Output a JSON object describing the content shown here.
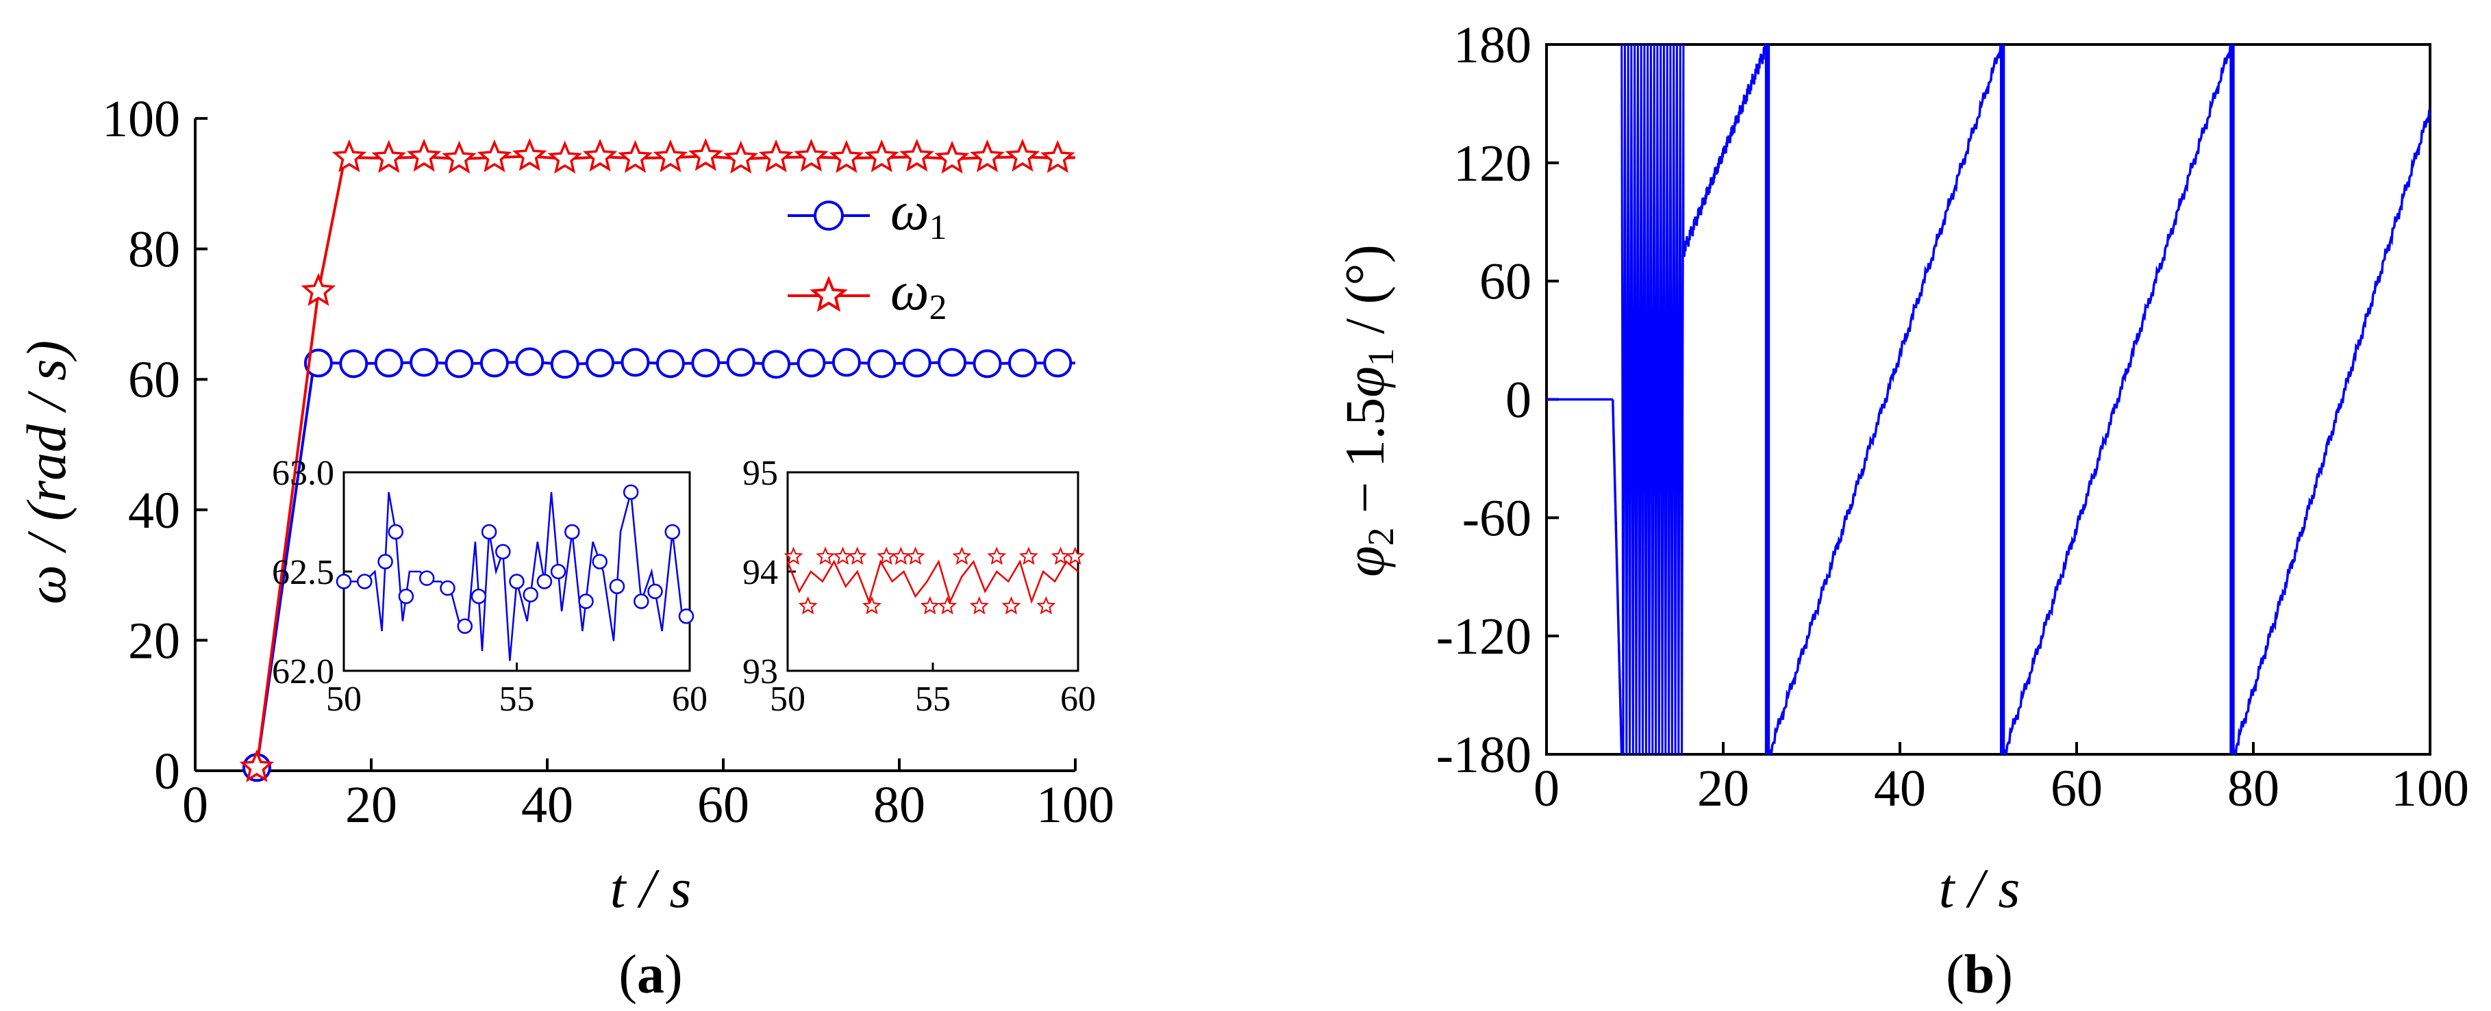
{
  "panel_a": {
    "label_open": "(",
    "label_letter": "a",
    "label_close": ")"
  },
  "panel_b": {
    "label_open": "(",
    "label_letter": "b",
    "label_close": ")"
  },
  "colors": {
    "omega1": "#0000ee",
    "omega2": "#ee0000",
    "phase": "#0000ff",
    "axis": "#000000"
  },
  "chart_data": [
    {
      "type": "line",
      "xlabel": "t / s",
      "ylabel": "ω / (rad / s)",
      "xlim": [
        0,
        100
      ],
      "ylim": [
        0,
        100
      ],
      "xticks": [
        0,
        20,
        40,
        60,
        80,
        100
      ],
      "yticks": [
        0,
        20,
        40,
        60,
        80,
        100
      ],
      "legend_position": "top-right",
      "series": [
        {
          "name": "ω1",
          "marker": "circle",
          "x": [
            7,
            13.5,
            16,
            18,
            22,
            26,
            30,
            34,
            38,
            42,
            46,
            50,
            54,
            58,
            62,
            66,
            70,
            74,
            78,
            82,
            86,
            90,
            94,
            98,
            100
          ],
          "y": [
            0.5,
            62.5,
            62.5,
            62.4,
            62.5,
            62.6,
            62.4,
            62.5,
            62.7,
            62.3,
            62.5,
            62.6,
            62.4,
            62.5,
            62.6,
            62.3,
            62.5,
            62.6,
            62.4,
            62.5,
            62.6,
            62.4,
            62.5,
            62.5,
            62.5
          ],
          "marker_x": [
            7,
            14,
            18,
            22,
            26,
            30,
            34,
            38,
            42,
            46,
            50,
            54,
            58,
            62,
            66,
            70,
            74,
            78,
            82,
            86,
            90,
            94,
            98
          ]
        },
        {
          "name": "ω2",
          "marker": "star",
          "x": [
            7,
            14,
            17,
            18,
            22,
            26,
            30,
            34,
            38,
            42,
            46,
            50,
            54,
            58,
            62,
            66,
            70,
            74,
            78,
            82,
            86,
            90,
            94,
            98,
            100
          ],
          "y": [
            0.5,
            73.5,
            94,
            94,
            93.9,
            94.1,
            93.8,
            94,
            94.2,
            93.8,
            94.1,
            93.9,
            94,
            94.2,
            93.8,
            94,
            94.1,
            93.9,
            94,
            94.1,
            93.8,
            94,
            94.1,
            93.9,
            94
          ],
          "marker_x": [
            7,
            14,
            17.5,
            22,
            26,
            30,
            34,
            38,
            42,
            46,
            50,
            54,
            58,
            62,
            66,
            70,
            74,
            78,
            82,
            86,
            90,
            94,
            98
          ]
        }
      ],
      "insets": [
        {
          "series": "ω1",
          "xlim": [
            50,
            60
          ],
          "ylim": [
            62.0,
            63.0
          ],
          "xticks": [
            50,
            55,
            60
          ],
          "yticks": [
            62.0,
            62.5,
            63.0
          ],
          "ytick_labels": [
            "62.0",
            "62.5",
            "63.0"
          ],
          "x": [
            50,
            50.3,
            50.6,
            50.9,
            51.1,
            51.3,
            51.5,
            51.7,
            51.9,
            52.2,
            52.5,
            52.8,
            53.1,
            53.4,
            53.6,
            53.8,
            54.0,
            54.2,
            54.4,
            54.6,
            54.8,
            55.0,
            55.3,
            55.6,
            55.8,
            56.0,
            56.3,
            56.6,
            56.9,
            57.2,
            57.5,
            57.8,
            58.0,
            58.3,
            58.6,
            58.9,
            59.2,
            59.5,
            59.8,
            60
          ],
          "y": [
            62.45,
            62.45,
            62.45,
            62.5,
            62.2,
            62.9,
            62.7,
            62.25,
            62.5,
            62.5,
            62.45,
            62.45,
            62.4,
            62.2,
            62.25,
            62.65,
            62.1,
            62.7,
            62.5,
            62.6,
            62.05,
            62.45,
            62.25,
            62.65,
            62.45,
            62.9,
            62.3,
            62.7,
            62.2,
            62.65,
            62.5,
            62.15,
            62.7,
            62.9,
            62.35,
            62.5,
            62.2,
            62.7,
            62.25,
            62.3
          ],
          "marker_x": [
            50,
            50.6,
            51.2,
            51.5,
            51.8,
            52.4,
            53.0,
            53.5,
            53.9,
            54.2,
            54.6,
            55.0,
            55.4,
            55.8,
            56.2,
            56.6,
            57.0,
            57.4,
            57.9,
            58.3,
            58.6,
            59.0,
            59.5,
            59.9
          ]
        },
        {
          "series": "ω2",
          "xlim": [
            50,
            60
          ],
          "ylim": [
            93,
            95
          ],
          "xticks": [
            50,
            55,
            60
          ],
          "yticks": [
            93,
            94,
            95
          ],
          "ytick_labels": [
            "93",
            "94",
            "95"
          ],
          "x": [
            50,
            50.4,
            50.8,
            51.2,
            51.6,
            52.0,
            52.4,
            52.8,
            53.2,
            53.6,
            54.0,
            54.4,
            54.8,
            55.2,
            55.6,
            56.0,
            56.4,
            56.8,
            57.2,
            57.6,
            58.0,
            58.4,
            58.8,
            59.2,
            59.6,
            60
          ],
          "y": [
            94.1,
            93.8,
            94.0,
            93.9,
            94.1,
            93.85,
            94.0,
            93.7,
            94.1,
            93.9,
            94.0,
            93.75,
            93.9,
            94.1,
            93.7,
            93.95,
            94.1,
            93.8,
            94.0,
            93.9,
            94.1,
            93.7,
            94.0,
            93.9,
            94.1,
            94.0
          ],
          "marker_x": [
            50.2,
            50.7,
            51.3,
            51.9,
            52.4,
            52.9,
            53.4,
            53.9,
            54.4,
            54.9,
            55.5,
            56.0,
            56.6,
            57.2,
            57.7,
            58.3,
            58.9,
            59.4,
            59.9
          ],
          "marker_y": [
            94.15,
            93.65,
            94.15,
            94.15,
            94.15,
            93.65,
            94.15,
            94.15,
            94.15,
            93.65,
            93.65,
            94.15,
            93.65,
            94.15,
            93.65,
            94.15,
            93.65,
            94.15,
            94.15
          ]
        }
      ]
    },
    {
      "type": "line",
      "xlabel": "t / s",
      "ylabel": "φ2 − 1.5φ1 / (°)",
      "xlim": [
        0,
        100
      ],
      "ylim": [
        -180,
        180
      ],
      "xticks": [
        0,
        20,
        40,
        60,
        80,
        100
      ],
      "xtick_labels": [
        "0",
        "20",
        "40",
        "60",
        "80",
        "100"
      ],
      "yticks": [
        -180,
        -120,
        -60,
        0,
        60,
        120,
        180
      ],
      "ytick_labels": [
        "-180",
        "-120",
        "-60",
        "0",
        "60",
        "120",
        "180"
      ],
      "series": [
        {
          "name": "",
          "segments": [
            {
              "x": [
                0,
                7.5
              ],
              "y": [
                0,
                0
              ]
            },
            {
              "x": [
                7.5,
                8.5
              ],
              "y": [
                0,
                -180
              ]
            },
            {
              "x": [
                15.5,
                25
              ],
              "y": [
                75,
                180
              ]
            },
            {
              "x": [
                25.2,
                51.5
              ],
              "y": [
                -180,
                180
              ]
            },
            {
              "x": [
                51.8,
                77.5
              ],
              "y": [
                -180,
                180
              ]
            },
            {
              "x": [
                77.8,
                100
              ],
              "y": [
                -180,
                147
              ]
            }
          ],
          "chaotic_band": [
            8.5,
            15.5
          ],
          "vertical_jumps": [
            25,
            51.6,
            77.6
          ]
        }
      ]
    }
  ]
}
